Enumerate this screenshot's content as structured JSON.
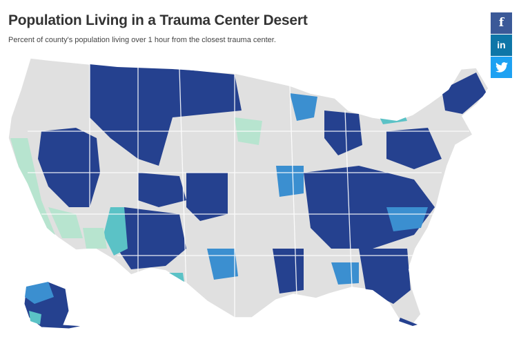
{
  "header": {
    "title": "Population Living in a Trauma Center Desert",
    "subtitle": "Percent of county's population living over 1 hour from the closest trauma center."
  },
  "share": {
    "facebook_label": "f",
    "linkedin_label": "in",
    "twitter_icon": "twitter-bird-icon"
  },
  "map": {
    "type": "choropleth",
    "region": "United States counties",
    "colors": {
      "none": "#e0e0e0",
      "low": "#b7e4cf",
      "medium_low": "#5bc2c6",
      "medium_high": "#3b8fd0",
      "high": "#25418f",
      "borders": "#ffffff"
    }
  }
}
